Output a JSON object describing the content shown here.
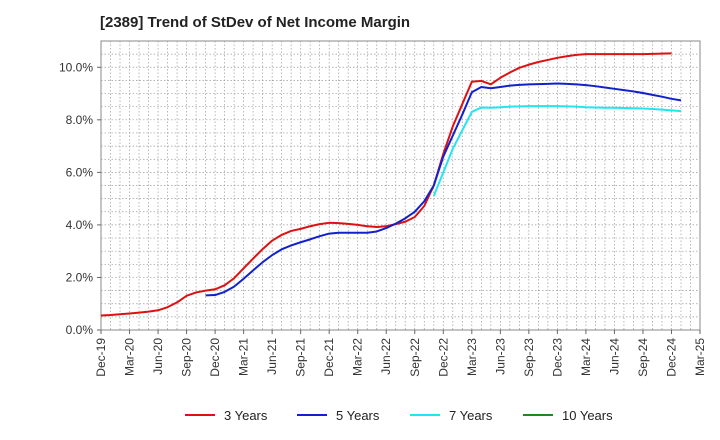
{
  "chart_data": {
    "type": "line",
    "title": "[2389]  Trend of StDev of Net Income Margin",
    "xlabel": "",
    "ylabel": "",
    "ylim": [
      0,
      11
    ],
    "yticks": [
      0,
      2,
      4,
      6,
      8,
      10
    ],
    "ytick_labels": [
      "0.0%",
      "2.0%",
      "4.0%",
      "6.0%",
      "8.0%",
      "10.0%"
    ],
    "x_categories": [
      "Dec-19",
      "Mar-20",
      "Jun-20",
      "Sep-20",
      "Dec-20",
      "Mar-21",
      "Jun-21",
      "Sep-21",
      "Dec-21",
      "Mar-22",
      "Jun-22",
      "Sep-22",
      "Dec-22",
      "Mar-23",
      "Jun-23",
      "Sep-23",
      "Dec-23",
      "Mar-24",
      "Jun-24",
      "Sep-24",
      "Dec-24",
      "Mar-25"
    ],
    "grid": true,
    "legend_position": "bottom",
    "series": [
      {
        "name": "3 Years",
        "color": "#dd1111",
        "points": [
          [
            "Dec-19",
            0.55
          ],
          [
            "Jan-20",
            0.57
          ],
          [
            "Feb-20",
            0.6
          ],
          [
            "Mar-20",
            0.63
          ],
          [
            "Apr-20",
            0.66
          ],
          [
            "May-20",
            0.7
          ],
          [
            "Jun-20",
            0.75
          ],
          [
            "Jul-20",
            0.87
          ],
          [
            "Aug-20",
            1.05
          ],
          [
            "Sep-20",
            1.3
          ],
          [
            "Oct-20",
            1.43
          ],
          [
            "Nov-20",
            1.5
          ],
          [
            "Dec-20",
            1.55
          ],
          [
            "Jan-21",
            1.7
          ],
          [
            "Feb-21",
            1.97
          ],
          [
            "Mar-21",
            2.35
          ],
          [
            "Apr-21",
            2.72
          ],
          [
            "May-21",
            3.08
          ],
          [
            "Jun-21",
            3.4
          ],
          [
            "Jul-21",
            3.62
          ],
          [
            "Aug-21",
            3.77
          ],
          [
            "Sep-21",
            3.85
          ],
          [
            "Oct-21",
            3.95
          ],
          [
            "Nov-21",
            4.03
          ],
          [
            "Dec-21",
            4.08
          ],
          [
            "Jan-22",
            4.07
          ],
          [
            "Feb-22",
            4.04
          ],
          [
            "Mar-22",
            4.0
          ],
          [
            "Apr-22",
            3.95
          ],
          [
            "May-22",
            3.92
          ],
          [
            "Jun-22",
            3.95
          ],
          [
            "Jul-22",
            4.03
          ],
          [
            "Aug-22",
            4.12
          ],
          [
            "Sep-22",
            4.3
          ],
          [
            "Oct-22",
            4.72
          ],
          [
            "Nov-22",
            5.5
          ],
          [
            "Dec-22",
            6.7
          ],
          [
            "Jan-23",
            7.75
          ],
          [
            "Feb-23",
            8.6
          ],
          [
            "Mar-23",
            9.45
          ],
          [
            "Apr-23",
            9.48
          ],
          [
            "May-23",
            9.35
          ],
          [
            "Jun-23",
            9.6
          ],
          [
            "Jul-23",
            9.8
          ],
          [
            "Aug-23",
            9.98
          ],
          [
            "Sep-23",
            10.1
          ],
          [
            "Oct-23",
            10.2
          ],
          [
            "Nov-23",
            10.28
          ],
          [
            "Dec-23",
            10.36
          ],
          [
            "Jan-24",
            10.42
          ],
          [
            "Feb-24",
            10.47
          ],
          [
            "Mar-24",
            10.5
          ],
          [
            "Apr-24",
            10.5
          ],
          [
            "May-24",
            10.5
          ],
          [
            "Jun-24",
            10.5
          ],
          [
            "Jul-24",
            10.5
          ],
          [
            "Aug-24",
            10.5
          ],
          [
            "Sep-24",
            10.5
          ],
          [
            "Oct-24",
            10.51
          ],
          [
            "Nov-24",
            10.52
          ],
          [
            "Dec-24",
            10.53
          ]
        ]
      },
      {
        "name": "5 Years",
        "color": "#1122cc",
        "points": [
          [
            "Nov-20",
            1.32
          ],
          [
            "Dec-20",
            1.33
          ],
          [
            "Jan-21",
            1.45
          ],
          [
            "Feb-21",
            1.65
          ],
          [
            "Mar-21",
            1.95
          ],
          [
            "Apr-21",
            2.27
          ],
          [
            "May-21",
            2.58
          ],
          [
            "Jun-21",
            2.85
          ],
          [
            "Jul-21",
            3.07
          ],
          [
            "Aug-21",
            3.22
          ],
          [
            "Sep-21",
            3.34
          ],
          [
            "Oct-21",
            3.45
          ],
          [
            "Nov-21",
            3.57
          ],
          [
            "Dec-21",
            3.67
          ],
          [
            "Jan-22",
            3.7
          ],
          [
            "Feb-22",
            3.7
          ],
          [
            "Mar-22",
            3.7
          ],
          [
            "Apr-22",
            3.7
          ],
          [
            "May-22",
            3.75
          ],
          [
            "Jun-22",
            3.88
          ],
          [
            "Jul-22",
            4.05
          ],
          [
            "Aug-22",
            4.25
          ],
          [
            "Sep-22",
            4.5
          ],
          [
            "Oct-22",
            4.9
          ],
          [
            "Nov-22",
            5.5
          ],
          [
            "Dec-22",
            6.6
          ],
          [
            "Jan-23",
            7.4
          ],
          [
            "Feb-23",
            8.2
          ],
          [
            "Mar-23",
            9.05
          ],
          [
            "Apr-23",
            9.25
          ],
          [
            "May-23",
            9.2
          ],
          [
            "Jun-23",
            9.25
          ],
          [
            "Jul-23",
            9.3
          ],
          [
            "Aug-23",
            9.33
          ],
          [
            "Sep-23",
            9.35
          ],
          [
            "Oct-23",
            9.36
          ],
          [
            "Nov-23",
            9.37
          ],
          [
            "Dec-23",
            9.38
          ],
          [
            "Jan-24",
            9.37
          ],
          [
            "Feb-24",
            9.35
          ],
          [
            "Mar-24",
            9.32
          ],
          [
            "Apr-24",
            9.28
          ],
          [
            "May-24",
            9.23
          ],
          [
            "Jun-24",
            9.18
          ],
          [
            "Jul-24",
            9.13
          ],
          [
            "Aug-24",
            9.08
          ],
          [
            "Sep-24",
            9.02
          ],
          [
            "Oct-24",
            8.95
          ],
          [
            "Nov-24",
            8.88
          ],
          [
            "Dec-24",
            8.8
          ],
          [
            "Jan-25",
            8.74
          ]
        ]
      },
      {
        "name": "7 Years",
        "color": "#22e5f0",
        "points": [
          [
            "Nov-22",
            5.1
          ],
          [
            "Dec-22",
            6.0
          ],
          [
            "Jan-23",
            6.9
          ],
          [
            "Feb-23",
            7.6
          ],
          [
            "Mar-23",
            8.3
          ],
          [
            "Apr-23",
            8.47
          ],
          [
            "May-23",
            8.46
          ],
          [
            "Jun-23",
            8.48
          ],
          [
            "Jul-23",
            8.5
          ],
          [
            "Aug-23",
            8.51
          ],
          [
            "Sep-23",
            8.52
          ],
          [
            "Oct-23",
            8.52
          ],
          [
            "Nov-23",
            8.52
          ],
          [
            "Dec-23",
            8.52
          ],
          [
            "Jan-24",
            8.51
          ],
          [
            "Feb-24",
            8.5
          ],
          [
            "Mar-24",
            8.48
          ],
          [
            "Apr-24",
            8.47
          ],
          [
            "May-24",
            8.46
          ],
          [
            "Jun-24",
            8.46
          ],
          [
            "Jul-24",
            8.45
          ],
          [
            "Aug-24",
            8.44
          ],
          [
            "Sep-24",
            8.43
          ],
          [
            "Oct-24",
            8.41
          ],
          [
            "Nov-24",
            8.39
          ],
          [
            "Dec-24",
            8.36
          ],
          [
            "Jan-25",
            8.33
          ]
        ]
      },
      {
        "name": "10 Years",
        "color": "#1e8a1e",
        "points": []
      }
    ]
  }
}
